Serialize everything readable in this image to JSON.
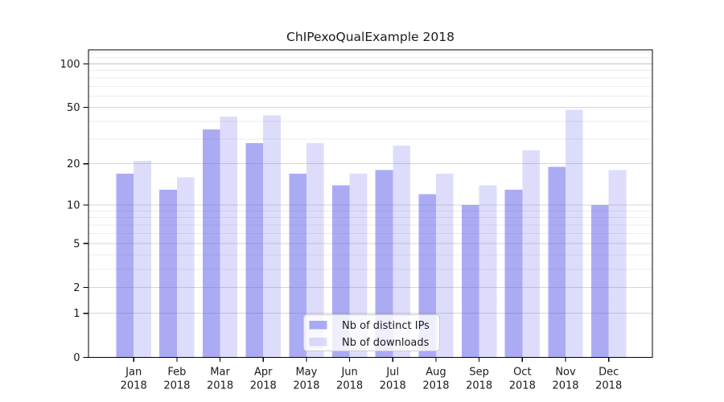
{
  "chart_data": {
    "type": "bar",
    "title": "ChIPexoQualExample 2018",
    "categories": [
      "Jan",
      "Feb",
      "Mar",
      "Apr",
      "May",
      "Jun",
      "Jul",
      "Aug",
      "Sep",
      "Oct",
      "Nov",
      "Dec"
    ],
    "x_tick_year": "2018",
    "series": [
      {
        "name": "Nb of distinct IPs",
        "values": [
          17,
          13,
          35,
          28,
          17,
          14,
          18,
          12,
          10,
          13,
          19,
          10
        ],
        "color": "rgba(102,102,235,0.55)"
      },
      {
        "name": "Nb of downloads",
        "values": [
          21,
          16,
          43,
          44,
          28,
          17,
          27,
          17,
          14,
          25,
          48,
          18
        ],
        "color": "rgba(102,102,235,0.22)"
      }
    ],
    "yscale": "log1p",
    "ylim": [
      0,
      125
    ],
    "major_yticks": [
      0,
      1,
      2,
      5,
      10,
      20,
      50,
      100
    ],
    "minor_yticks": [
      3,
      4,
      6,
      7,
      8,
      9,
      30,
      40,
      60,
      70,
      80,
      90,
      110,
      120
    ],
    "grid": true,
    "legend": {
      "position": "bottom-center"
    },
    "colors": {
      "axis": "#000000",
      "text": "#1a1a1a",
      "major_grid": "#d6d6d6",
      "top_grid": "#c2c2c2",
      "minor_grid": "#ebebeb",
      "legend_border": "#cccccc",
      "legend_fill": "rgba(255,255,255,0.8)"
    }
  }
}
